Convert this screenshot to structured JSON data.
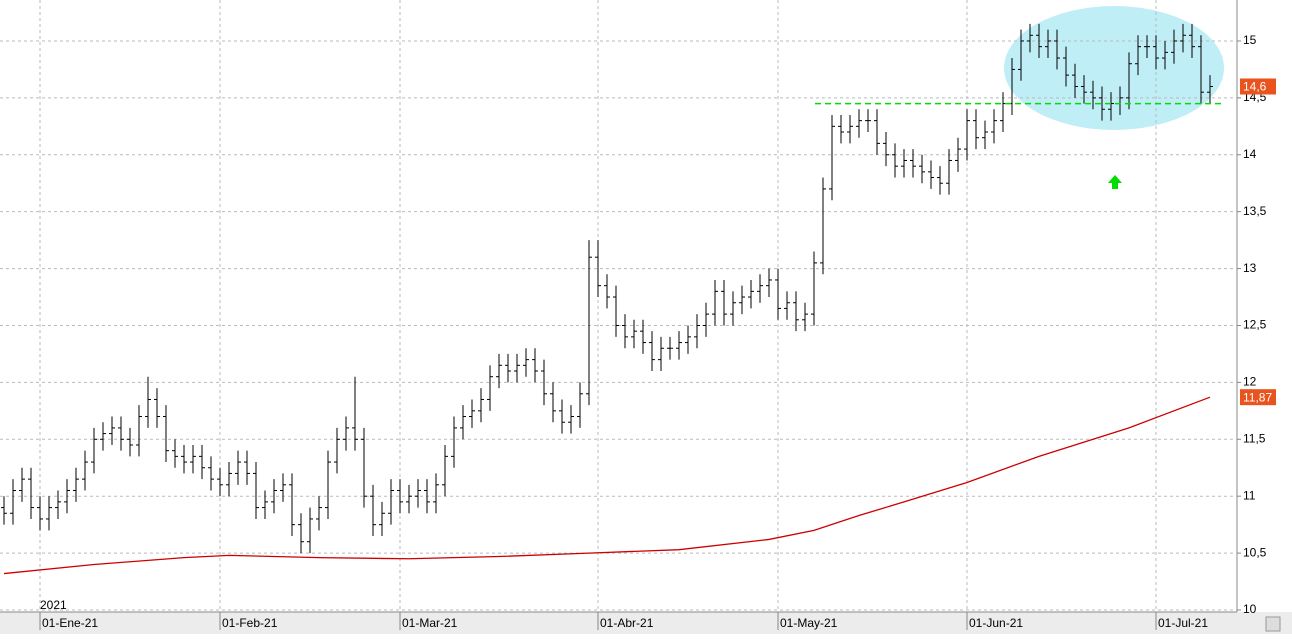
{
  "chart_data": {
    "type": "ohlc",
    "year_label": "2021",
    "categories": [
      null,
      null,
      null,
      null,
      "01-Ene-21",
      null,
      null,
      null,
      null,
      null,
      null,
      null,
      null,
      null,
      null,
      null,
      null,
      null,
      null,
      null,
      null,
      null,
      null,
      null,
      "01-Feb-21",
      null,
      null,
      null,
      null,
      null,
      null,
      null,
      null,
      null,
      null,
      null,
      null,
      null,
      null,
      null,
      null,
      null,
      null,
      null,
      "01-Mar-21",
      null,
      null,
      null,
      null,
      null,
      null,
      null,
      null,
      null,
      null,
      null,
      null,
      null,
      null,
      null,
      null,
      null,
      null,
      null,
      null,
      null,
      "01-Abr-21",
      null,
      null,
      null,
      null,
      null,
      null,
      null,
      null,
      null,
      null,
      null,
      null,
      null,
      null,
      null,
      null,
      null,
      null,
      null,
      "01-May-21",
      null,
      null,
      null,
      null,
      null,
      null,
      null,
      null,
      null,
      null,
      null,
      null,
      null,
      null,
      null,
      null,
      null,
      null,
      null,
      null,
      "01-Jun-21",
      null,
      null,
      null,
      null,
      null,
      null,
      null,
      null,
      null,
      null,
      null,
      null,
      null,
      null,
      null,
      null,
      null,
      null,
      null,
      null,
      "01-Jul-21",
      null,
      null,
      null,
      null,
      null,
      null
    ],
    "ohlc": {
      "color": "#000000",
      "open": [
        10.9,
        10.85,
        11.05,
        11.15,
        10.9,
        10.8,
        10.9,
        10.95,
        11.05,
        11.15,
        11.3,
        11.5,
        11.55,
        11.6,
        11.5,
        11.45,
        11.7,
        11.85,
        11.7,
        11.4,
        11.35,
        11.3,
        11.35,
        11.25,
        11.15,
        11.1,
        11.2,
        11.3,
        11.2,
        10.9,
        10.95,
        11.05,
        11.1,
        10.75,
        10.6,
        10.8,
        10.9,
        11.3,
        11.5,
        11.6,
        11.5,
        11.0,
        10.75,
        10.85,
        11.05,
        10.95,
        11.0,
        11.05,
        10.95,
        11.1,
        11.35,
        11.6,
        11.7,
        11.75,
        11.85,
        12.05,
        12.15,
        12.1,
        12.15,
        12.2,
        12.1,
        11.9,
        11.75,
        11.65,
        11.7,
        11.9,
        13.1,
        12.85,
        12.75,
        12.5,
        12.4,
        12.45,
        12.35,
        12.2,
        12.3,
        12.3,
        12.35,
        12.4,
        12.5,
        12.6,
        12.8,
        12.6,
        12.7,
        12.75,
        12.8,
        12.85,
        12.9,
        12.65,
        12.7,
        12.55,
        12.6,
        13.05,
        13.7,
        14.25,
        14.2,
        14.25,
        14.3,
        14.3,
        14.1,
        14.0,
        13.9,
        13.95,
        13.9,
        13.85,
        13.8,
        13.75,
        13.95,
        14.05,
        14.3,
        14.15,
        14.2,
        14.3,
        14.45,
        14.75,
        15.0,
        15.05,
        14.95,
        15.0,
        14.85,
        14.7,
        14.6,
        14.55,
        14.5,
        14.4,
        14.45,
        14.5,
        14.8,
        14.95,
        14.95,
        14.85,
        14.9,
        15.0,
        15.05,
        14.95,
        14.55
      ],
      "high": [
        11.0,
        11.15,
        11.25,
        11.25,
        11.0,
        11.0,
        11.05,
        11.15,
        11.25,
        11.4,
        11.6,
        11.65,
        11.7,
        11.7,
        11.6,
        11.8,
        12.05,
        11.95,
        11.8,
        11.5,
        11.45,
        11.45,
        11.45,
        11.35,
        11.25,
        11.3,
        11.4,
        11.4,
        11.3,
        11.05,
        11.15,
        11.2,
        11.2,
        10.85,
        10.9,
        11.0,
        11.4,
        11.6,
        11.7,
        12.05,
        11.6,
        11.1,
        10.95,
        11.15,
        11.15,
        11.1,
        11.15,
        11.15,
        11.2,
        11.45,
        11.7,
        11.8,
        11.85,
        11.95,
        12.15,
        12.25,
        12.25,
        12.25,
        12.3,
        12.3,
        12.2,
        12.0,
        11.85,
        11.8,
        12.0,
        13.25,
        13.25,
        12.95,
        12.85,
        12.6,
        12.55,
        12.55,
        12.45,
        12.4,
        12.4,
        12.45,
        12.5,
        12.6,
        12.7,
        12.9,
        12.9,
        12.8,
        12.85,
        12.9,
        12.95,
        13.0,
        13.0,
        12.8,
        12.8,
        12.7,
        13.15,
        13.8,
        14.35,
        14.35,
        14.35,
        14.4,
        14.4,
        14.4,
        14.2,
        14.1,
        14.05,
        14.05,
        14.0,
        13.95,
        13.9,
        14.05,
        14.15,
        14.4,
        14.4,
        14.3,
        14.4,
        14.55,
        14.85,
        15.1,
        15.15,
        15.15,
        15.1,
        15.1,
        14.95,
        14.8,
        14.7,
        14.65,
        14.6,
        14.55,
        14.6,
        14.9,
        15.05,
        15.05,
        15.05,
        15.0,
        15.1,
        15.15,
        15.15,
        15.05,
        14.7
      ],
      "low": [
        10.75,
        10.75,
        10.95,
        10.8,
        10.7,
        10.7,
        10.8,
        10.85,
        10.95,
        11.05,
        11.2,
        11.4,
        11.45,
        11.4,
        11.35,
        11.35,
        11.6,
        11.6,
        11.3,
        11.25,
        11.2,
        11.2,
        11.15,
        11.05,
        11.0,
        11.0,
        11.1,
        11.1,
        10.8,
        10.8,
        10.85,
        10.95,
        10.65,
        10.5,
        10.5,
        10.7,
        10.8,
        11.2,
        11.4,
        11.4,
        10.9,
        10.65,
        10.65,
        10.75,
        10.85,
        10.85,
        10.9,
        10.85,
        10.85,
        11.0,
        11.25,
        11.5,
        11.6,
        11.65,
        11.75,
        11.95,
        12.0,
        12.0,
        12.05,
        12.0,
        11.8,
        11.65,
        11.55,
        11.55,
        11.6,
        11.8,
        12.75,
        12.65,
        12.4,
        12.3,
        12.3,
        12.25,
        12.1,
        12.1,
        12.2,
        12.2,
        12.25,
        12.3,
        12.4,
        12.5,
        12.5,
        12.5,
        12.6,
        12.65,
        12.7,
        12.75,
        12.55,
        12.55,
        12.45,
        12.45,
        12.5,
        12.95,
        13.6,
        14.1,
        14.1,
        14.15,
        14.2,
        14.0,
        13.9,
        13.8,
        13.8,
        13.8,
        13.75,
        13.7,
        13.65,
        13.65,
        13.85,
        13.95,
        14.05,
        14.05,
        14.1,
        14.2,
        14.35,
        14.65,
        14.9,
        14.85,
        14.85,
        14.75,
        14.6,
        14.5,
        14.45,
        14.4,
        14.3,
        14.3,
        14.35,
        14.4,
        14.7,
        14.85,
        14.75,
        14.75,
        14.8,
        14.9,
        14.85,
        14.45,
        14.45
      ],
      "close": [
        10.85,
        11.05,
        11.15,
        10.9,
        10.8,
        10.9,
        10.95,
        11.05,
        11.15,
        11.3,
        11.5,
        11.55,
        11.6,
        11.5,
        11.45,
        11.7,
        11.85,
        11.7,
        11.4,
        11.35,
        11.3,
        11.35,
        11.25,
        11.15,
        11.1,
        11.2,
        11.3,
        11.2,
        10.9,
        10.95,
        11.05,
        11.1,
        10.75,
        10.6,
        10.8,
        10.9,
        11.3,
        11.5,
        11.6,
        11.5,
        11.0,
        10.75,
        10.85,
        11.05,
        10.95,
        11.0,
        11.05,
        10.95,
        11.1,
        11.35,
        11.6,
        11.7,
        11.75,
        11.85,
        12.05,
        12.15,
        12.1,
        12.15,
        12.2,
        12.1,
        11.9,
        11.75,
        11.65,
        11.7,
        11.9,
        13.1,
        12.85,
        12.75,
        12.5,
        12.4,
        12.45,
        12.35,
        12.2,
        12.3,
        12.3,
        12.35,
        12.4,
        12.5,
        12.6,
        12.8,
        12.6,
        12.7,
        12.75,
        12.8,
        12.85,
        12.9,
        12.65,
        12.7,
        12.55,
        12.6,
        13.05,
        13.7,
        14.25,
        14.2,
        14.25,
        14.3,
        14.3,
        14.1,
        14.0,
        13.9,
        13.95,
        13.9,
        13.85,
        13.8,
        13.75,
        13.95,
        14.05,
        14.3,
        14.15,
        14.2,
        14.3,
        14.45,
        14.75,
        15.0,
        15.05,
        14.95,
        15.0,
        14.85,
        14.7,
        14.6,
        14.55,
        14.5,
        14.4,
        14.45,
        14.5,
        14.8,
        14.95,
        14.95,
        14.85,
        14.9,
        15.0,
        15.05,
        14.95,
        14.55,
        14.6
      ]
    },
    "moving_average": {
      "color": "#cc0000",
      "x": [
        0,
        10,
        20,
        25,
        35,
        45,
        55,
        65,
        75,
        85,
        90,
        95,
        100,
        107,
        115,
        125,
        134
      ],
      "values": [
        10.32,
        10.4,
        10.46,
        10.48,
        10.46,
        10.45,
        10.47,
        10.5,
        10.53,
        10.62,
        10.7,
        10.83,
        10.95,
        11.12,
        11.35,
        11.6,
        11.87
      ]
    },
    "support_level": {
      "value": 14.45,
      "color": "#00dd00"
    },
    "last_price": {
      "value": 14.6,
      "label": "14,6"
    },
    "ma_last": {
      "value": 11.87,
      "label": "11,87"
    },
    "ylim": [
      10,
      15.36
    ],
    "yticks": [
      10,
      {
        "value": 10.5,
        "label": "10,5"
      },
      11,
      {
        "value": 11.5,
        "label": "11,5"
      },
      12,
      {
        "value": 12.5,
        "label": "12,5"
      },
      13,
      {
        "value": 13.5,
        "label": "13,5"
      },
      14,
      {
        "value": 14.5,
        "label": "14,5"
      },
      15
    ],
    "grid": true
  }
}
